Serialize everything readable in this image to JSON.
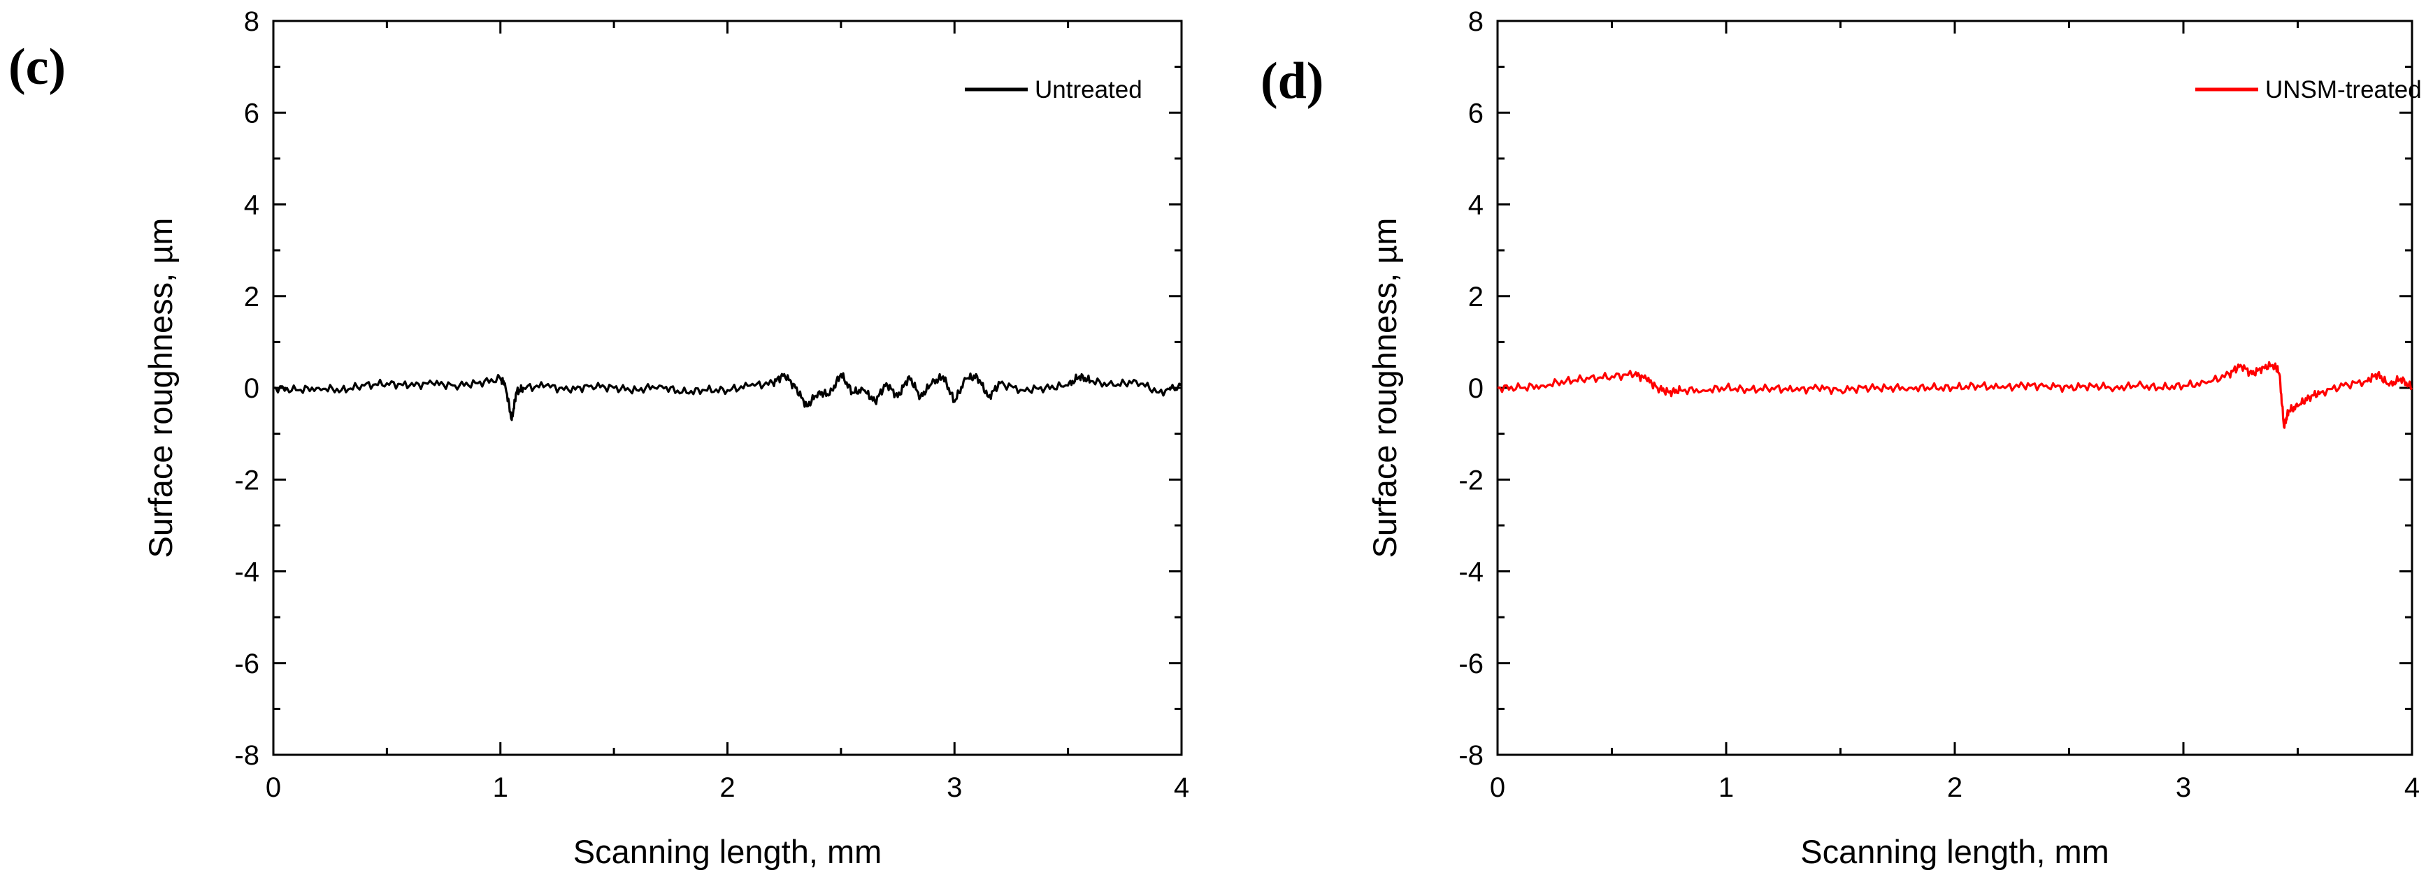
{
  "chart_data": [
    {
      "type": "line",
      "panel_label": "(c)",
      "xlabel": "Scanning length, mm",
      "ylabel": "Surface roughness, µm",
      "xlim": [
        0,
        4
      ],
      "ylim": [
        -8,
        8
      ],
      "x_ticks": [
        "0",
        "1",
        "2",
        "3",
        "4"
      ],
      "y_ticks": [
        "-8",
        "-6",
        "-4",
        "-2",
        "0",
        "2",
        "4",
        "6",
        "8"
      ],
      "legend_position": "top-right",
      "series": [
        {
          "name": "Untreated",
          "color": "#000000",
          "x": [
            0,
            0.1,
            0.2,
            0.3,
            0.4,
            0.5,
            0.6,
            0.7,
            0.8,
            0.9,
            1.0,
            1.02,
            1.05,
            1.07,
            1.1,
            1.2,
            1.3,
            1.4,
            1.5,
            1.6,
            1.7,
            1.8,
            1.9,
            2.0,
            2.1,
            2.2,
            2.25,
            2.3,
            2.35,
            2.4,
            2.45,
            2.5,
            2.55,
            2.6,
            2.65,
            2.7,
            2.75,
            2.8,
            2.85,
            2.9,
            2.95,
            3.0,
            3.05,
            3.1,
            3.15,
            3.2,
            3.3,
            3.4,
            3.5,
            3.55,
            3.6,
            3.7,
            3.8,
            3.9,
            4.0
          ],
          "y": [
            0.0,
            -0.05,
            0.0,
            -0.05,
            0.05,
            0.1,
            0.05,
            0.1,
            0.05,
            0.1,
            0.2,
            0.1,
            -0.7,
            -0.1,
            0.0,
            0.05,
            -0.05,
            0.05,
            0.0,
            -0.05,
            0.05,
            -0.1,
            -0.05,
            -0.05,
            0.05,
            0.1,
            0.3,
            0.0,
            -0.4,
            -0.1,
            -0.15,
            0.3,
            -0.1,
            -0.05,
            -0.3,
            0.1,
            -0.2,
            0.25,
            -0.2,
            0.1,
            0.25,
            -0.3,
            0.2,
            0.25,
            -0.2,
            0.1,
            -0.05,
            0.0,
            0.05,
            0.25,
            0.15,
            0.05,
            0.15,
            -0.1,
            0.05
          ]
        }
      ]
    },
    {
      "type": "line",
      "panel_label": "(d)",
      "xlabel": "Scanning length, mm",
      "ylabel": "Surface roughness, µm",
      "xlim": [
        0,
        4
      ],
      "ylim": [
        -8,
        8
      ],
      "x_ticks": [
        "0",
        "1",
        "2",
        "3",
        "4"
      ],
      "y_ticks": [
        "-8",
        "-6",
        "-4",
        "-2",
        "0",
        "2",
        "4",
        "6",
        "8"
      ],
      "legend_position": "top-right",
      "series": [
        {
          "name": "UNSM-treated",
          "color": "#ff0000",
          "x": [
            0,
            0.1,
            0.2,
            0.3,
            0.4,
            0.5,
            0.6,
            0.65,
            0.7,
            0.75,
            0.8,
            0.9,
            1.0,
            1.1,
            1.2,
            1.3,
            1.4,
            1.5,
            1.6,
            1.7,
            1.8,
            1.9,
            2.0,
            2.1,
            2.2,
            2.3,
            2.4,
            2.5,
            2.6,
            2.7,
            2.8,
            2.9,
            3.0,
            3.1,
            3.2,
            3.25,
            3.3,
            3.35,
            3.4,
            3.42,
            3.44,
            3.46,
            3.5,
            3.55,
            3.6,
            3.7,
            3.8,
            3.85,
            3.9,
            3.95,
            4.0
          ],
          "y": [
            0.0,
            0.0,
            0.05,
            0.15,
            0.2,
            0.25,
            0.3,
            0.2,
            0.0,
            -0.1,
            -0.05,
            -0.05,
            0.0,
            -0.05,
            0.0,
            -0.05,
            0.0,
            -0.05,
            0.0,
            0.0,
            0.0,
            0.0,
            0.0,
            0.05,
            0.0,
            0.05,
            0.05,
            0.0,
            0.05,
            0.0,
            0.05,
            0.0,
            0.05,
            0.1,
            0.3,
            0.5,
            0.3,
            0.45,
            0.5,
            0.3,
            -0.85,
            -0.5,
            -0.4,
            -0.2,
            -0.1,
            0.05,
            0.15,
            0.3,
            0.05,
            0.2,
            0.0
          ]
        }
      ]
    }
  ]
}
